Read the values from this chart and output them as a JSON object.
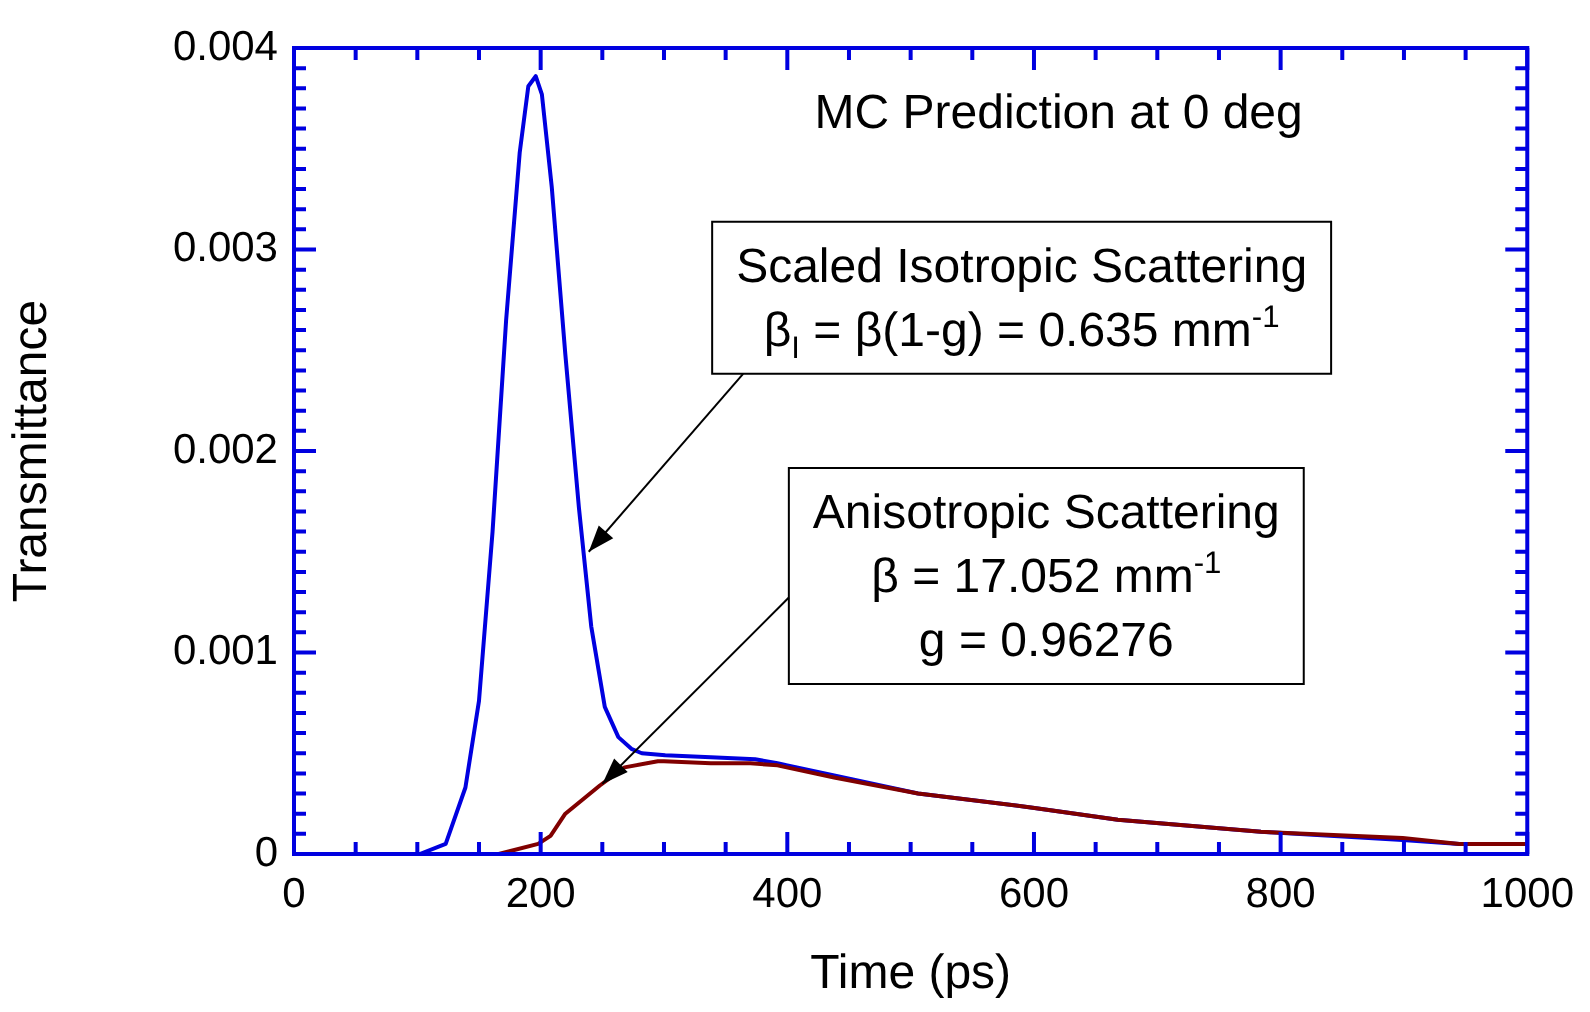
{
  "chart_data": {
    "type": "line",
    "xlabel": "Time (ps)",
    "ylabel": "Transmittance",
    "xlim": [
      0,
      1000
    ],
    "ylim": [
      0,
      0.004
    ],
    "xticks": [
      0,
      {
        "value": 50,
        "label": null
      },
      {
        "value": 100,
        "label": null
      },
      {
        "value": 150,
        "label": null
      },
      200,
      {
        "value": 250,
        "label": null
      },
      {
        "value": 300,
        "label": null
      },
      {
        "value": 350,
        "label": null
      },
      400,
      {
        "value": 450,
        "label": null
      },
      {
        "value": 500,
        "label": null
      },
      {
        "value": 550,
        "label": null
      },
      600,
      {
        "value": 650,
        "label": null
      },
      {
        "value": 700,
        "label": null
      },
      {
        "value": 750,
        "label": null
      },
      800,
      {
        "value": 850,
        "label": null
      },
      {
        "value": 900,
        "label": null
      },
      {
        "value": 950,
        "label": null
      },
      1000
    ],
    "yticks": [
      0,
      {
        "value": 0.0001,
        "label": null
      },
      {
        "value": 0.0002,
        "label": null
      },
      {
        "value": 0.0003,
        "label": null
      },
      {
        "value": 0.0004,
        "label": null
      },
      {
        "value": 0.0005,
        "label": null
      },
      {
        "value": 0.0006,
        "label": null
      },
      {
        "value": 0.0007,
        "label": null
      },
      {
        "value": 0.0008,
        "label": null
      },
      {
        "value": 0.0009,
        "label": null
      },
      0.001,
      {
        "value": 0.0011,
        "label": null
      },
      {
        "value": 0.0012,
        "label": null
      },
      {
        "value": 0.0013,
        "label": null
      },
      {
        "value": 0.0014,
        "label": null
      },
      {
        "value": 0.0015,
        "label": null
      },
      {
        "value": 0.0016,
        "label": null
      },
      {
        "value": 0.0017,
        "label": null
      },
      {
        "value": 0.0018,
        "label": null
      },
      {
        "value": 0.0019,
        "label": null
      },
      0.002,
      {
        "value": 0.0021,
        "label": null
      },
      {
        "value": 0.0022,
        "label": null
      },
      {
        "value": 0.0023,
        "label": null
      },
      {
        "value": 0.0024,
        "label": null
      },
      {
        "value": 0.0025,
        "label": null
      },
      {
        "value": 0.0026,
        "label": null
      },
      {
        "value": 0.0027,
        "label": null
      },
      {
        "value": 0.0028,
        "label": null
      },
      {
        "value": 0.0029,
        "label": null
      },
      0.003,
      {
        "value": 0.0031,
        "label": null
      },
      {
        "value": 0.0032,
        "label": null
      },
      {
        "value": 0.0033,
        "label": null
      },
      {
        "value": 0.0034,
        "label": null
      },
      {
        "value": 0.0035,
        "label": null
      },
      {
        "value": 0.0036,
        "label": null
      },
      {
        "value": 0.0037,
        "label": null
      },
      {
        "value": 0.0038,
        "label": null
      },
      {
        "value": 0.0039,
        "label": null
      },
      0.004
    ],
    "grid": false,
    "legend": false,
    "marker": "none",
    "line_style": "solid",
    "series": [
      {
        "color": "#800000",
        "x": [
          166,
          198,
          208,
          220,
          248,
          268,
          295,
          300,
          338,
          370,
          392,
          438,
          506,
          599,
          668,
          784,
          899,
          945,
          1000
        ],
        "values": [
          0,
          5e-05,
          9e-05,
          0.0002,
          0.00034,
          0.00043,
          0.00046,
          0.00046,
          0.00045,
          0.00045,
          0.00044,
          0.00038,
          0.0003,
          0.00023,
          0.00017,
          0.00011,
          8e-05,
          5e-05,
          5e-05
        ]
      },
      {
        "color": "#0000e0",
        "x": [
          0,
          102,
          123,
          139,
          150,
          161,
          172,
          183,
          190,
          196,
          201,
          209,
          220,
          231,
          241,
          252,
          263,
          274,
          282,
          301,
          338,
          374,
          392,
          438,
          506,
          599,
          668,
          784,
          899,
          945,
          1000
        ],
        "values": [
          0,
          0,
          5e-05,
          0.00033,
          0.00076,
          0.0016,
          0.00265,
          0.00348,
          0.00381,
          0.00386,
          0.00377,
          0.00331,
          0.00248,
          0.00172,
          0.00113,
          0.00073,
          0.00058,
          0.00052,
          0.0005,
          0.00049,
          0.00048,
          0.00047,
          0.00045,
          0.00039,
          0.0003,
          0.00023,
          0.00017,
          0.00011,
          7e-05,
          5e-05,
          5e-05
        ]
      }
    ],
    "annotations": [
      "MC Prediction at 0 deg",
      "Scaled Isotropic Scattering",
      {
        "text": "β$_{I}$ = β(1-g) = 0.635 mm$^{-1}$",
        "x": 239,
        "y": 0.0015
      },
      "Anisotropic Scattering",
      "β = 17.052 mm$^{-1}$",
      "g = 0.96276"
    ]
  }
}
